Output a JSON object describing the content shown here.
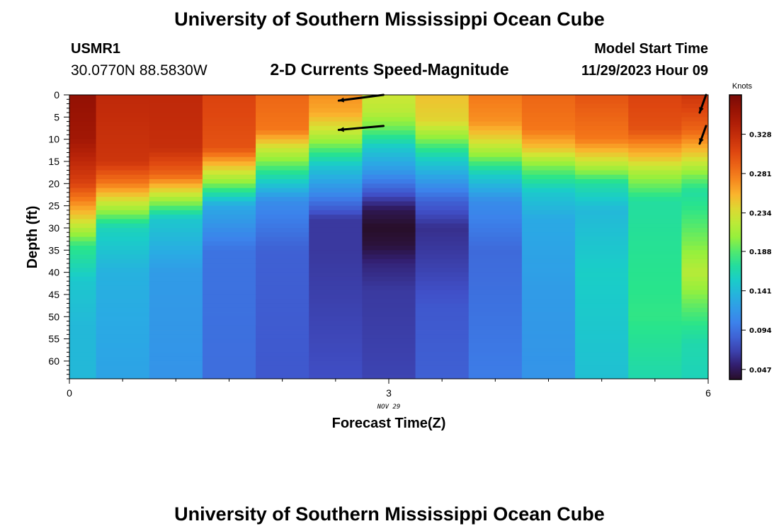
{
  "header": {
    "title": "University of Southern Mississippi Ocean Cube",
    "station": "USMR1",
    "location": "30.0770N  88.5830W",
    "subtitle": "2-D Currents Speed-Magnitude",
    "model_start_label": "Model Start Time",
    "model_start_value": "11/29/2023 Hour 09"
  },
  "footer": {
    "title": "University of Southern Mississippi Ocean Cube"
  },
  "chart_data": {
    "type": "heatmap",
    "title": "2-D Currents Speed-Magnitude",
    "xlabel": "Forecast Time(Z)",
    "ylabel": "Depth (ft)",
    "x_ticks": [
      "0",
      "3",
      "6"
    ],
    "x_date_label": "NOV 29",
    "y_ticks": [
      "0",
      "5",
      "10",
      "15",
      "20",
      "25",
      "30",
      "35",
      "40",
      "45",
      "50",
      "55",
      "60"
    ],
    "xlim": [
      0,
      6
    ],
    "ylim": [
      0,
      64
    ],
    "colorbar": {
      "label": "Knots",
      "min": 0.035,
      "max": 0.375,
      "ticks": [
        "0.047",
        "0.094",
        "0.141",
        "0.188",
        "0.234",
        "0.281",
        "0.328"
      ],
      "tick_values": [
        0.047,
        0.094,
        0.141,
        0.188,
        0.234,
        0.281,
        0.328
      ]
    },
    "columns": [
      {
        "time_range": [
          0.0,
          0.25
        ],
        "profile": [
          [
            0,
            0.36
          ],
          [
            10,
            0.35
          ],
          [
            20,
            0.31
          ],
          [
            28,
            0.24
          ],
          [
            34,
            0.18
          ],
          [
            42,
            0.15
          ],
          [
            52,
            0.14
          ],
          [
            64,
            0.14
          ]
        ]
      },
      {
        "time_range": [
          0.25,
          0.75
        ],
        "profile": [
          [
            0,
            0.33
          ],
          [
            15,
            0.32
          ],
          [
            20,
            0.28
          ],
          [
            25,
            0.22
          ],
          [
            30,
            0.16
          ],
          [
            40,
            0.135
          ],
          [
            64,
            0.125
          ]
        ]
      },
      {
        "time_range": [
          0.75,
          1.25
        ],
        "profile": [
          [
            0,
            0.33
          ],
          [
            12,
            0.325
          ],
          [
            18,
            0.29
          ],
          [
            23,
            0.22
          ],
          [
            28,
            0.15
          ],
          [
            40,
            0.12
          ],
          [
            64,
            0.115
          ]
        ]
      },
      {
        "time_range": [
          1.25,
          1.75
        ],
        "profile": [
          [
            0,
            0.31
          ],
          [
            12,
            0.3
          ],
          [
            16,
            0.25
          ],
          [
            20,
            0.2
          ],
          [
            25,
            0.13
          ],
          [
            35,
            0.095
          ],
          [
            64,
            0.092
          ]
        ]
      },
      {
        "time_range": [
          1.75,
          2.25
        ],
        "profile": [
          [
            0,
            0.29
          ],
          [
            8,
            0.28
          ],
          [
            12,
            0.23
          ],
          [
            18,
            0.17
          ],
          [
            24,
            0.11
          ],
          [
            35,
            0.085
          ],
          [
            64,
            0.08
          ]
        ]
      },
      {
        "time_range": [
          2.25,
          2.75
        ],
        "profile": [
          [
            0,
            0.27
          ],
          [
            4,
            0.26
          ],
          [
            8,
            0.23
          ],
          [
            12,
            0.19
          ],
          [
            16,
            0.15
          ],
          [
            22,
            0.11
          ],
          [
            28,
            0.065
          ],
          [
            36,
            0.065
          ],
          [
            64,
            0.075
          ]
        ]
      },
      {
        "time_range": [
          2.75,
          3.25
        ],
        "profile": [
          [
            0,
            0.23
          ],
          [
            4,
            0.22
          ],
          [
            8,
            0.19
          ],
          [
            12,
            0.15
          ],
          [
            17,
            0.12
          ],
          [
            22,
            0.08
          ],
          [
            26,
            0.045
          ],
          [
            30,
            0.035
          ],
          [
            34,
            0.04
          ],
          [
            38,
            0.055
          ],
          [
            44,
            0.065
          ],
          [
            64,
            0.07
          ]
        ]
      },
      {
        "time_range": [
          3.25,
          3.75
        ],
        "profile": [
          [
            0,
            0.25
          ],
          [
            6,
            0.24
          ],
          [
            10,
            0.2
          ],
          [
            14,
            0.16
          ],
          [
            18,
            0.13
          ],
          [
            24,
            0.085
          ],
          [
            30,
            0.06
          ],
          [
            38,
            0.068
          ],
          [
            48,
            0.08
          ],
          [
            64,
            0.085
          ]
        ]
      },
      {
        "time_range": [
          3.75,
          4.25
        ],
        "profile": [
          [
            0,
            0.28
          ],
          [
            6,
            0.27
          ],
          [
            10,
            0.24
          ],
          [
            14,
            0.2
          ],
          [
            18,
            0.155
          ],
          [
            24,
            0.11
          ],
          [
            35,
            0.09
          ],
          [
            50,
            0.095
          ],
          [
            64,
            0.1
          ]
        ]
      },
      {
        "time_range": [
          4.25,
          4.75
        ],
        "profile": [
          [
            0,
            0.29
          ],
          [
            8,
            0.28
          ],
          [
            12,
            0.25
          ],
          [
            16,
            0.2
          ],
          [
            22,
            0.15
          ],
          [
            28,
            0.13
          ],
          [
            45,
            0.12
          ],
          [
            64,
            0.115
          ]
        ]
      },
      {
        "time_range": [
          4.75,
          5.25
        ],
        "profile": [
          [
            0,
            0.3
          ],
          [
            10,
            0.28
          ],
          [
            15,
            0.23
          ],
          [
            20,
            0.17
          ],
          [
            26,
            0.14
          ],
          [
            40,
            0.155
          ],
          [
            64,
            0.145
          ]
        ]
      },
      {
        "time_range": [
          5.25,
          5.75
        ],
        "profile": [
          [
            0,
            0.31
          ],
          [
            8,
            0.3
          ],
          [
            14,
            0.25
          ],
          [
            18,
            0.21
          ],
          [
            24,
            0.17
          ],
          [
            35,
            0.175
          ],
          [
            50,
            0.18
          ],
          [
            64,
            0.165
          ]
        ]
      },
      {
        "time_range": [
          5.75,
          6.0
        ],
        "profile": [
          [
            0,
            0.32
          ],
          [
            8,
            0.29
          ],
          [
            14,
            0.24
          ],
          [
            18,
            0.2
          ],
          [
            22,
            0.17
          ],
          [
            34,
            0.2
          ],
          [
            40,
            0.22
          ],
          [
            48,
            0.19
          ],
          [
            56,
            0.165
          ],
          [
            64,
            0.16
          ]
        ]
      }
    ],
    "vectors": [
      {
        "time": 2.95,
        "depth": 0.0,
        "dx": -0.42,
        "dy": 1.3
      },
      {
        "time": 2.95,
        "depth": 7.0,
        "dx": -0.42,
        "dy": 0.9
      },
      {
        "time": 5.98,
        "depth": 0.0,
        "dx": -0.06,
        "dy": 4.0
      },
      {
        "time": 5.98,
        "depth": 7.0,
        "dx": -0.06,
        "dy": 4.0
      }
    ]
  },
  "colors": {
    "vector": "#000000",
    "axis": "#000000"
  }
}
